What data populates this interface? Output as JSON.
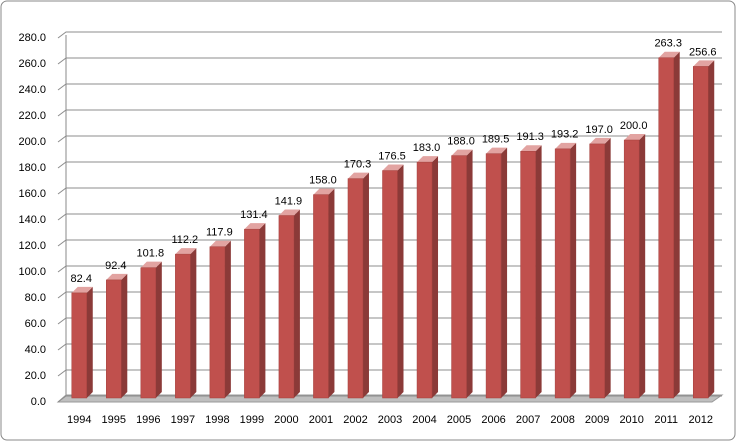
{
  "chart_data": {
    "type": "bar",
    "categories": [
      "1994",
      "1995",
      "1996",
      "1997",
      "1998",
      "1999",
      "2000",
      "2001",
      "2002",
      "2003",
      "2004",
      "2005",
      "2006",
      "2007",
      "2008",
      "2009",
      "2010",
      "2011",
      "2012"
    ],
    "values": [
      82.4,
      92.4,
      101.8,
      112.2,
      117.9,
      131.4,
      141.9,
      158.0,
      170.3,
      176.5,
      183.0,
      188.0,
      189.5,
      191.3,
      193.2,
      197.0,
      200.0,
      263.3,
      256.6
    ],
    "value_labels": [
      "82.4",
      "92.4",
      "101.8",
      "112.2",
      "117.9",
      "131.4",
      "141.9",
      "158.0",
      "170.3",
      "176.5",
      "183.0",
      "188.0",
      "189.5",
      "191.3",
      "193.2",
      "197.0",
      "200.0",
      "263.3",
      "256.6"
    ],
    "color": "#c0504d",
    "ylim": [
      0,
      280
    ],
    "yticks": [
      {
        "value": 0,
        "label": "0.0"
      },
      {
        "value": 20,
        "label": "20.0"
      },
      {
        "value": 40,
        "label": "40.0"
      },
      {
        "value": 60,
        "label": "60.0"
      },
      {
        "value": 80,
        "label": "80.0"
      },
      {
        "value": 100,
        "label": "100.0"
      },
      {
        "value": 120,
        "label": "120.0"
      },
      {
        "value": 140,
        "label": "140.0"
      },
      {
        "value": 160,
        "label": "160.0"
      },
      {
        "value": 180,
        "label": "180.0"
      },
      {
        "value": 200,
        "label": "200.0"
      },
      {
        "value": 220,
        "label": "220.0"
      },
      {
        "value": 240,
        "label": "240.0"
      },
      {
        "value": 260,
        "label": "260.0"
      },
      {
        "value": 280,
        "label": "280.0"
      }
    ],
    "grid": true
  }
}
